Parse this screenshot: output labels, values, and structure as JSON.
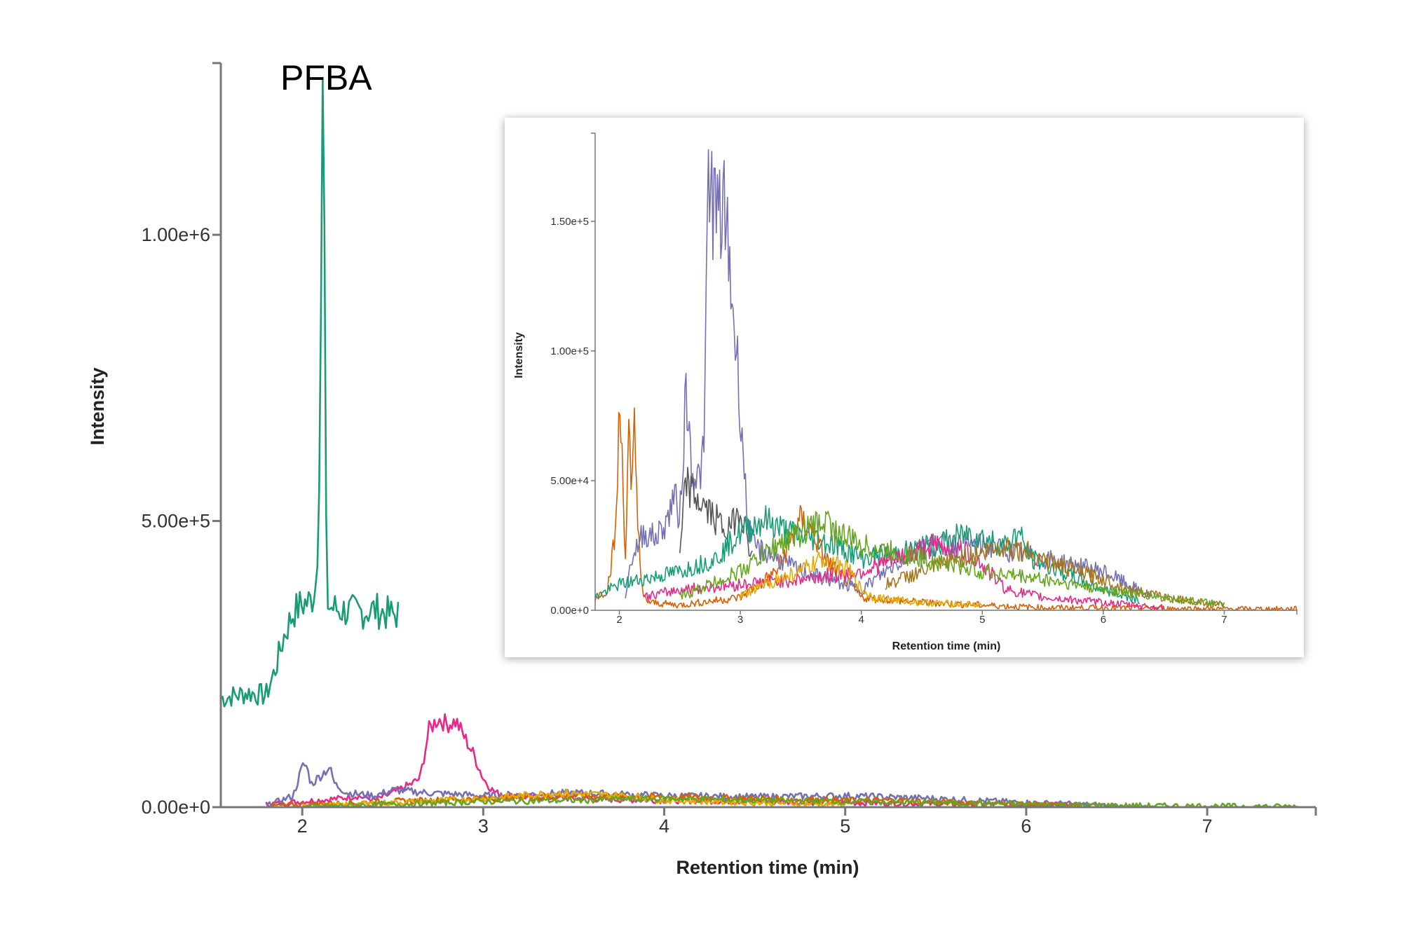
{
  "chart_data": [
    {
      "type": "line",
      "title": "PFBA",
      "xlabel": "Retention time (min)",
      "ylabel": "Intensity",
      "xlim": [
        1.55,
        7.6
      ],
      "ylim": [
        0,
        1300000
      ],
      "xticks": [
        "2",
        "3",
        "4",
        "5",
        "6",
        "7"
      ],
      "yticks": [
        "0.00e+0",
        "5.00e+5",
        "1.00e+6"
      ],
      "series": [
        {
          "color": "#1a9b77",
          "x": [
            1.55,
            1.7,
            1.8,
            1.85,
            1.9,
            1.95,
            2.0,
            2.05,
            2.08,
            2.1,
            2.11,
            2.12,
            2.13,
            2.14,
            2.15,
            2.2,
            2.3,
            2.4,
            2.5,
            2.53
          ],
          "y": [
            190000,
            200000,
            195000,
            240000,
            300000,
            340000,
            355000,
            360000,
            400000,
            700000,
            1270000,
            1150000,
            500000,
            360000,
            350000,
            345000,
            340000,
            345000,
            335000,
            340000
          ]
        },
        {
          "color": "#e7298a",
          "x": [
            1.8,
            2.2,
            2.3,
            2.4,
            2.5,
            2.6,
            2.65,
            2.7,
            2.75,
            2.8,
            2.85,
            2.9,
            2.95,
            3.0,
            3.05,
            3.1,
            3.5,
            4.0,
            5.0,
            5.5,
            6.0,
            6.2,
            6.4
          ],
          "y": [
            5000,
            15000,
            20000,
            12000,
            25000,
            40000,
            50000,
            135000,
            155000,
            145000,
            150000,
            120000,
            90000,
            50000,
            30000,
            20000,
            15000,
            12000,
            8000,
            6000,
            5000,
            4000,
            2000
          ]
        },
        {
          "color": "#7570b3",
          "x": [
            1.8,
            1.95,
            2.0,
            2.02,
            2.05,
            2.1,
            2.15,
            2.18,
            2.25,
            2.4,
            2.5,
            2.7,
            3.0,
            3.5,
            4.0,
            4.5,
            5.0,
            5.5,
            6.0,
            6.5
          ],
          "y": [
            2000,
            20000,
            70000,
            75000,
            40000,
            55000,
            70000,
            40000,
            25000,
            20000,
            30000,
            25000,
            20000,
            25000,
            20000,
            18000,
            20000,
            15000,
            8000,
            3000
          ]
        },
        {
          "color": "#d95f02",
          "x": [
            1.8,
            2.5,
            3.0,
            3.5,
            4.0,
            4.5,
            5.0,
            5.3,
            5.6,
            6.0,
            6.3
          ],
          "y": [
            2000,
            10000,
            15000,
            20000,
            18000,
            15000,
            12000,
            12000,
            8000,
            5000,
            3000
          ]
        },
        {
          "color": "#e6ab02",
          "x": [
            2.0,
            2.5,
            3.0,
            3.4,
            3.8,
            4.0,
            4.5,
            5.0
          ],
          "y": [
            1000,
            8000,
            15000,
            25000,
            20000,
            12000,
            8000,
            5000
          ]
        },
        {
          "color": "#66a61e",
          "x": [
            2.0,
            2.5,
            3.0,
            3.5,
            4.0,
            4.5,
            5.0,
            5.5,
            6.0,
            6.5,
            7.0,
            7.5
          ],
          "y": [
            1000,
            5000,
            10000,
            12000,
            15000,
            12000,
            10000,
            8000,
            5000,
            3000,
            2000,
            1000
          ]
        }
      ]
    },
    {
      "type": "line",
      "title": "",
      "xlabel": "Retention time (min)",
      "ylabel": "Intensity",
      "xlim": [
        1.8,
        7.6
      ],
      "ylim": [
        0,
        184000
      ],
      "xticks": [
        "2",
        "3",
        "4",
        "5",
        "6",
        "7"
      ],
      "yticks": [
        "0.00e+0",
        "5.00e+4",
        "1.00e+5",
        "1.50e+5"
      ],
      "series": [
        {
          "color": "#d95f02",
          "x": [
            1.8,
            1.9,
            1.97,
            2.0,
            2.02,
            2.05,
            2.08,
            2.1,
            2.12,
            2.15,
            2.18,
            2.2,
            2.25,
            2.5,
            3.0,
            3.3,
            3.4,
            3.5,
            3.6,
            3.7,
            3.8,
            3.9,
            4.0,
            4.5,
            5.0,
            5.5,
            6.0,
            7.0,
            7.6
          ],
          "y": [
            5000,
            8000,
            30000,
            76000,
            65000,
            20000,
            72000,
            35000,
            76000,
            40000,
            10000,
            5000,
            3000,
            2000,
            5000,
            15000,
            25000,
            35000,
            30000,
            20000,
            15000,
            10000,
            5000,
            3000,
            2000,
            1000,
            1000,
            500,
            500
          ]
        },
        {
          "color": "#7570b3",
          "x": [
            2.05,
            2.1,
            2.15,
            2.2,
            2.3,
            2.4,
            2.45,
            2.5,
            2.55,
            2.6,
            2.65,
            2.7,
            2.73,
            2.76,
            2.8,
            2.85,
            2.9,
            2.95,
            3.0,
            3.05,
            3.1,
            3.5,
            4.0,
            4.2,
            4.5,
            5.0,
            5.5,
            6.0,
            6.2,
            6.4
          ],
          "y": [
            5000,
            20000,
            25000,
            30000,
            28000,
            35000,
            45000,
            35000,
            85000,
            55000,
            50000,
            60000,
            160000,
            165000,
            150000,
            155000,
            140000,
            110000,
            80000,
            40000,
            25000,
            15000,
            8000,
            15000,
            25000,
            25000,
            20000,
            15000,
            10000,
            5000
          ]
        },
        {
          "color": "#555555",
          "x": [
            2.5,
            2.55,
            2.6,
            2.7,
            2.8,
            2.9,
            3.0,
            3.1
          ],
          "y": [
            20000,
            50000,
            45000,
            40000,
            35000,
            30000,
            40000,
            20000
          ]
        },
        {
          "color": "#1a9b77",
          "x": [
            1.8,
            2.0,
            2.2,
            2.5,
            2.8,
            3.0,
            3.2,
            3.4,
            3.6,
            3.8,
            4.0,
            4.3,
            4.6,
            4.9,
            5.0,
            5.2,
            5.3,
            5.4,
            5.5,
            5.8,
            6.0,
            6.3
          ],
          "y": [
            5000,
            10000,
            12000,
            15000,
            20000,
            30000,
            35000,
            30000,
            28000,
            25000,
            20000,
            22000,
            25000,
            30000,
            28000,
            25000,
            30000,
            20000,
            18000,
            12000,
            8000,
            4000
          ]
        },
        {
          "color": "#e7298a",
          "x": [
            2.2,
            2.5,
            3.0,
            3.5,
            4.0,
            4.3,
            4.6,
            4.9,
            5.2,
            5.5,
            6.0,
            6.5
          ],
          "y": [
            5000,
            8000,
            10000,
            12000,
            15000,
            20000,
            25000,
            22000,
            8000,
            5000,
            3000,
            1000
          ]
        },
        {
          "color": "#a6761d",
          "x": [
            4.2,
            4.5,
            4.8,
            5.0,
            5.2,
            5.4,
            5.6,
            5.8,
            6.0,
            6.2,
            6.5,
            7.0
          ],
          "y": [
            10000,
            15000,
            20000,
            22000,
            25000,
            22000,
            18000,
            15000,
            12000,
            8000,
            5000,
            2000
          ]
        },
        {
          "color": "#66a61e",
          "x": [
            2.5,
            3.0,
            3.3,
            3.5,
            3.7,
            3.8,
            4.0,
            4.5,
            5.0,
            5.5,
            6.0,
            6.5,
            7.0
          ],
          "y": [
            5000,
            15000,
            25000,
            30000,
            35000,
            30000,
            25000,
            20000,
            15000,
            12000,
            8000,
            5000,
            2000
          ]
        },
        {
          "color": "#e6ab02",
          "x": [
            3.0,
            3.2,
            3.5,
            3.7,
            3.9,
            4.0,
            4.1,
            4.5,
            5.0
          ],
          "y": [
            5000,
            10000,
            15000,
            20000,
            15000,
            8000,
            5000,
            3000,
            2000
          ]
        }
      ]
    }
  ]
}
